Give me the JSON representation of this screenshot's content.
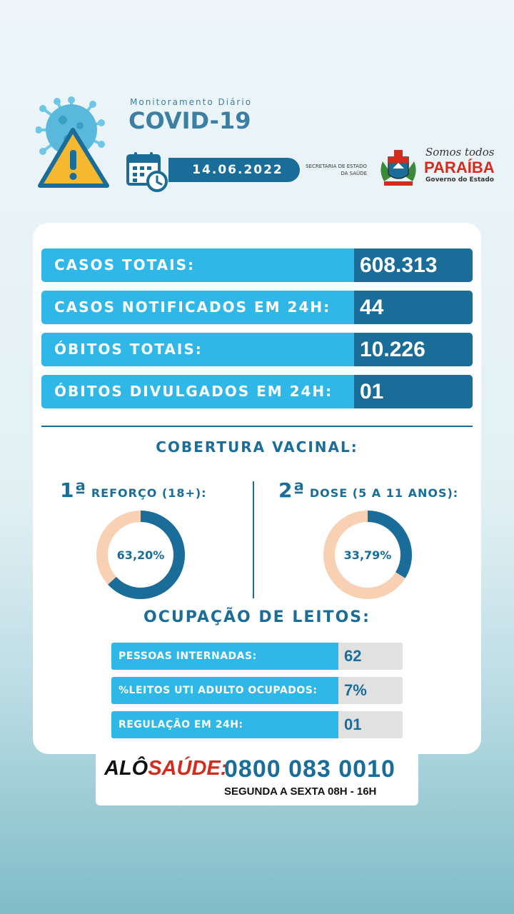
{
  "header": {
    "subtitle": "Monitoramento Diário",
    "title": "COVID-19",
    "date": "14.06.2022",
    "secretaria_line1": "SECRETARIA DE ESTADO",
    "secretaria_line2": "DA SAÚDE",
    "slogan": "Somos todos",
    "state": "PARAÍBA",
    "government": "Governo do Estado"
  },
  "stats": [
    {
      "label": "CASOS TOTAIS:",
      "value": "608.313"
    },
    {
      "label": "CASOS NOTIFICADOS EM 24H:",
      "value": "44"
    },
    {
      "label": "ÓBITOS TOTAIS:",
      "value": "10.226"
    },
    {
      "label": "ÓBITOS DIVULGADOS EM 24H:",
      "value": "01"
    }
  ],
  "vaccination": {
    "title": "COBERTURA VACINAL:",
    "left": {
      "ordinal": "1ª",
      "label": "REFORÇO (18+):",
      "percent_text": "63,20%",
      "percent": 63.2
    },
    "right": {
      "ordinal": "2ª",
      "label": "DOSE (5 A 11 ANOS):",
      "percent_text": "33,79%",
      "percent": 33.79
    }
  },
  "beds": {
    "title": "OCUPAÇÃO DE LEITOS:",
    "rows": [
      {
        "label": "PESSOAS INTERNADAS:",
        "value": "62"
      },
      {
        "label": "%LEITOS UTI ADULTO OCUPADOS:",
        "value": "7%"
      },
      {
        "label": "REGULAÇÃO EM 24H:",
        "value": "01"
      }
    ]
  },
  "footer": {
    "alo": "ALÔ",
    "saude": "SAÚDE:",
    "phone": "0800 083 0010",
    "hours": "SEGUNDA A SEXTA  08H - 16H"
  },
  "colors": {
    "primary": "#1a6d99",
    "accent": "#2fb7e8",
    "donut_track": "#f8d1b4",
    "red": "#d52b1e"
  }
}
